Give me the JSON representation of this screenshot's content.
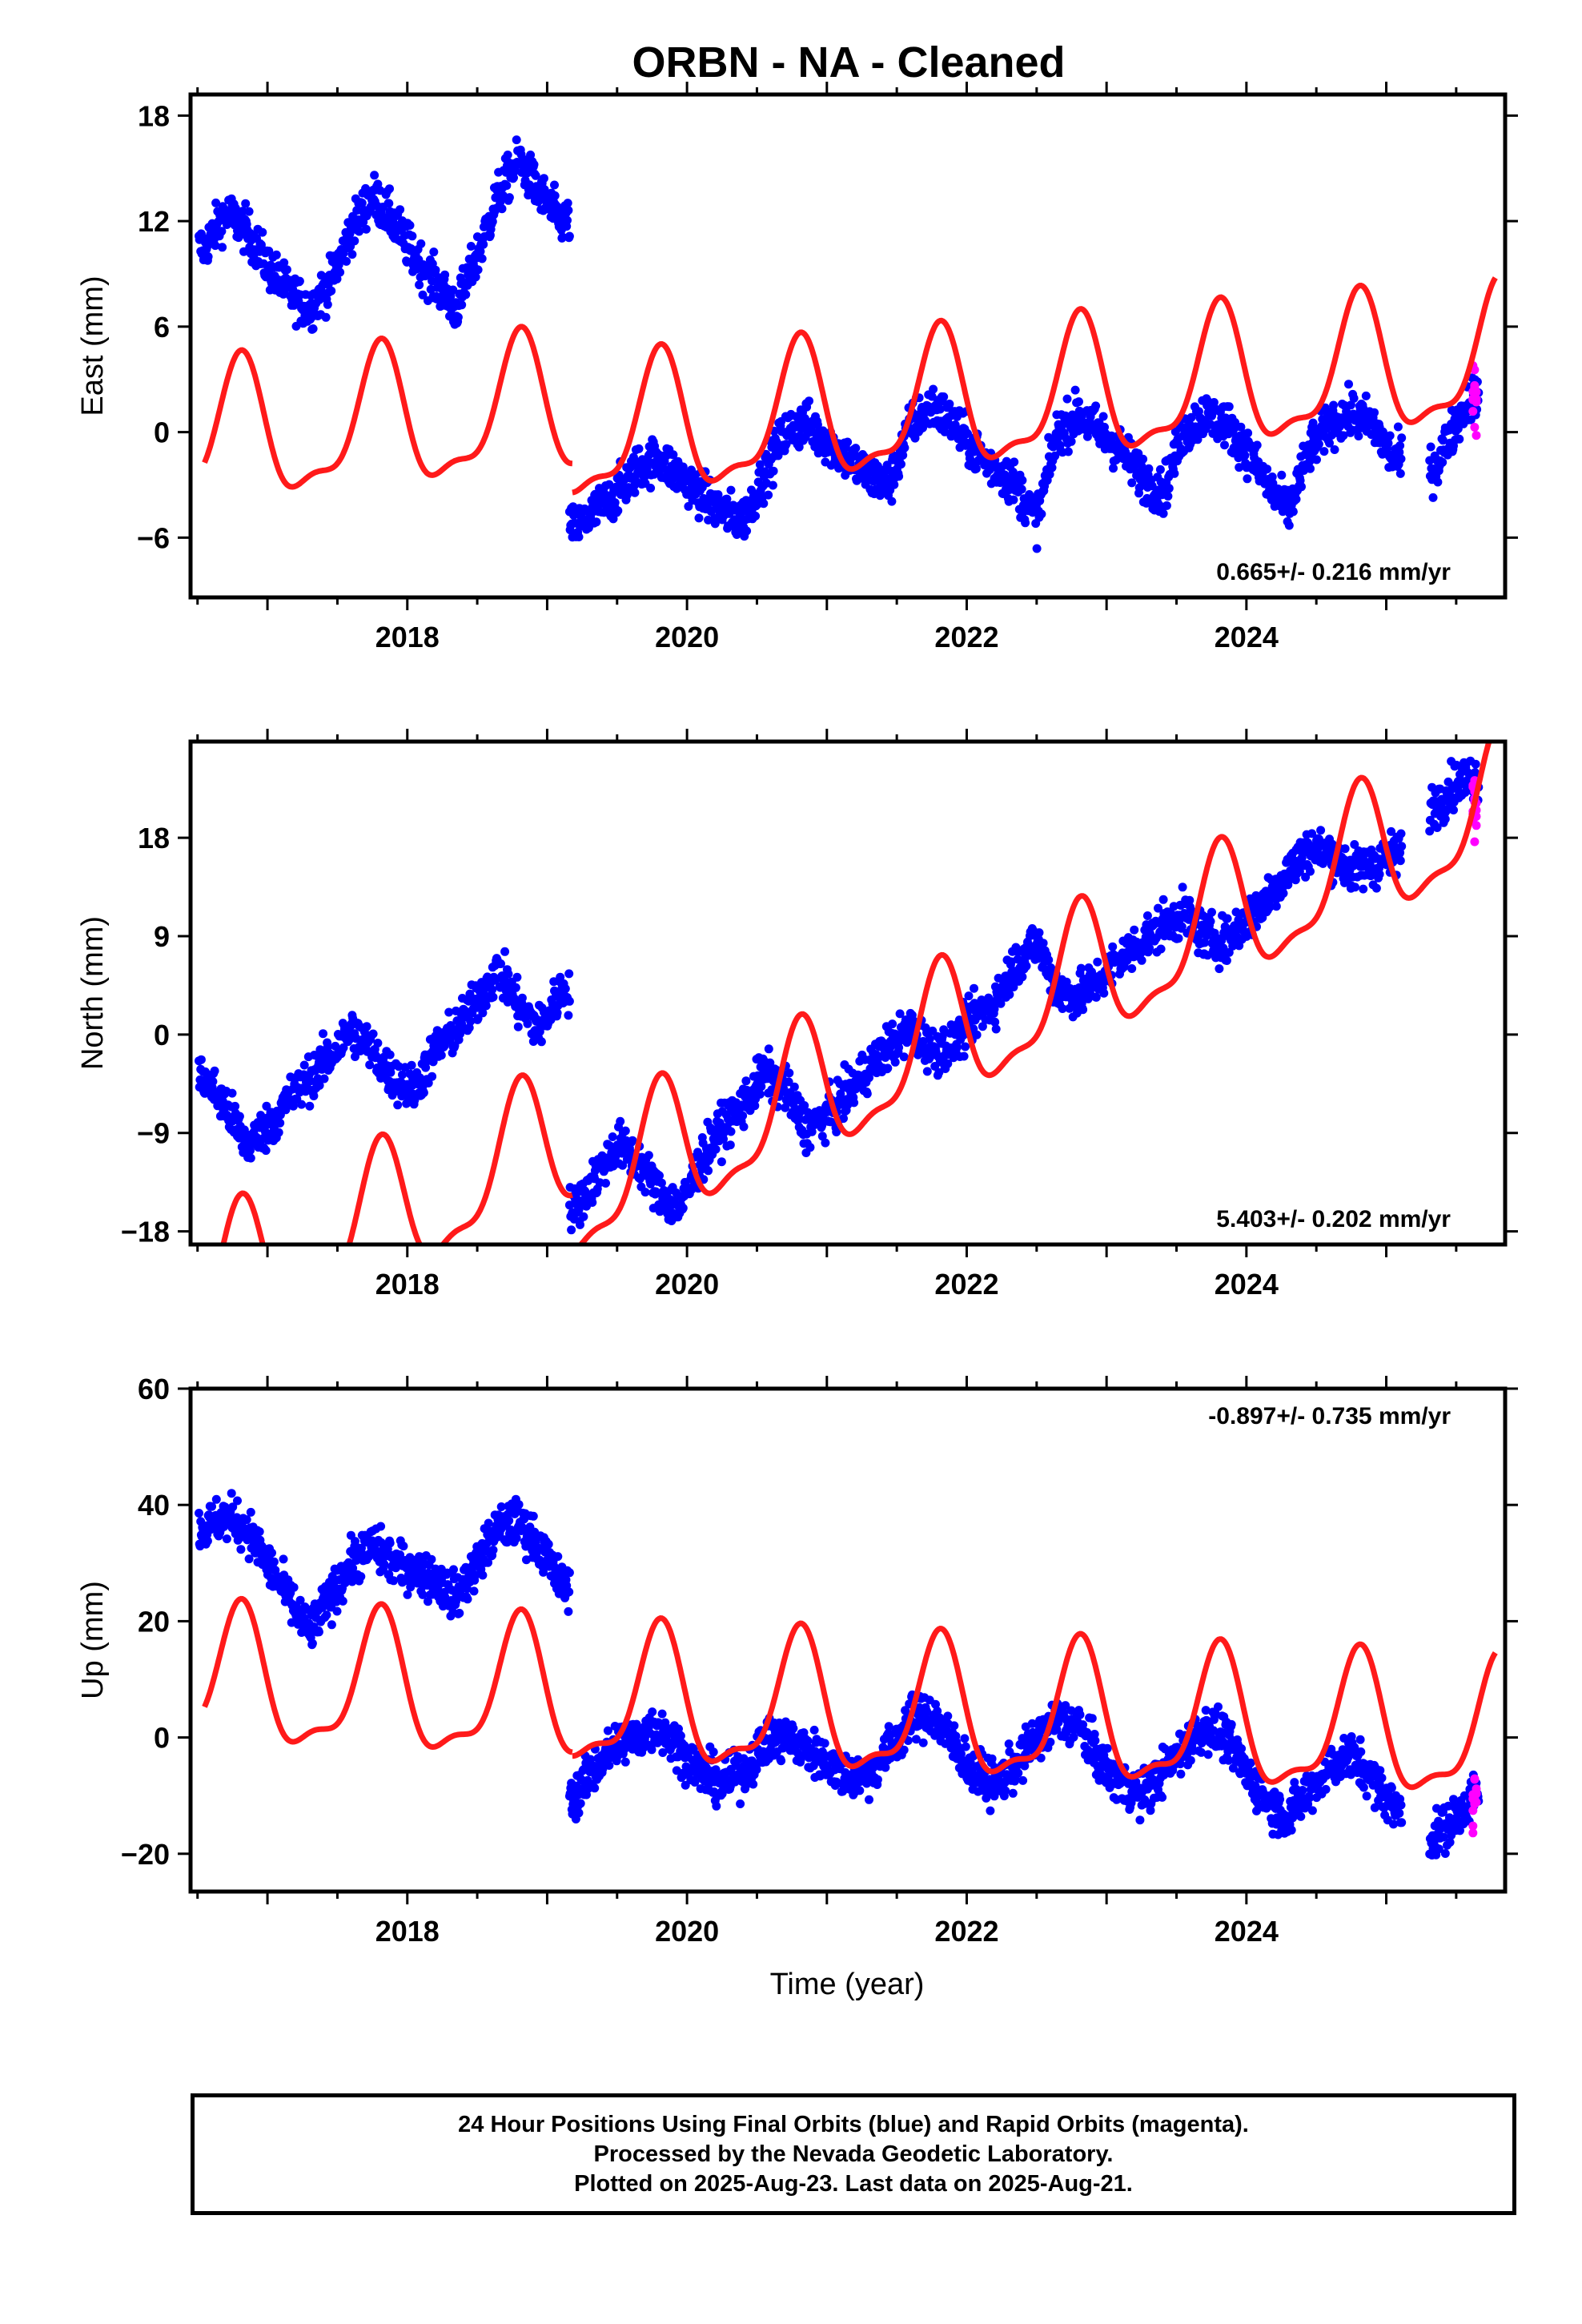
{
  "title": "ORBN  - NA - Cleaned",
  "xlabel": "Time (year)",
  "caption": {
    "line1": "24 Hour Positions Using Final Orbits (blue) and Rapid Orbits (magenta).",
    "line2": "Processed by the Nevada Geodetic Laboratory.",
    "line3": "Plotted on 2025-Aug-23. Last data on 2025-Aug-21."
  },
  "colors": {
    "final": "#0000ff",
    "rapid": "#ff00ff",
    "model": "#ff1a1a",
    "frame": "#000000"
  },
  "chart_data": [
    {
      "type": "scatter",
      "component": "east",
      "ylabel": "East (mm)",
      "rate_label": "0.665+/- 0.216 mm/yr",
      "xlim": [
        2016.45,
        2025.85
      ],
      "ylim": [
        -9.4,
        19.2
      ],
      "xticks": [
        2018,
        2020,
        2022,
        2024
      ],
      "yticks": [
        -6,
        0,
        6,
        12,
        18
      ],
      "series": [
        {
          "values_by_segment": [
            {
              "x": [
                2016.55,
                2016.7,
                2016.85,
                2017.0,
                2017.15,
                2017.3,
                2017.45,
                2017.6,
                2017.75,
                2017.9,
                2018.05,
                2018.2,
                2018.35,
                2018.5,
                2018.65,
                2018.8,
                2018.95,
                2019.1
              ],
              "y": [
                10.5,
                12.5,
                11.5,
                9.5,
                8.0,
                7.0,
                8.5,
                11.5,
                13.5,
                12.0,
                10.0,
                8.5,
                7.0,
                10.0,
                13.5,
                15.5,
                13.5,
                12.0
              ]
            },
            {
              "x": [
                2019.2,
                2019.35,
                2019.5,
                2019.65,
                2019.8,
                2019.95,
                2020.1,
                2020.25,
                2020.4,
                2020.55,
                2020.7,
                2020.85,
                2021.0,
                2021.15,
                2021.3,
                2021.45,
                2021.6,
                2021.75,
                2021.9,
                2022.05,
                2022.2,
                2022.35,
                2022.5,
                2022.65,
                2022.8,
                2022.95,
                2023.1,
                2023.25,
                2023.4,
                2023.55,
                2023.7,
                2023.85,
                2024.0,
                2024.15,
                2024.3,
                2024.45,
                2024.6,
                2024.75,
                2024.9,
                2025.05
              ],
              "y": [
                -5.5,
                -4.5,
                -3.5,
                -2.0,
                -1.5,
                -2.5,
                -3.5,
                -4.5,
                -5.0,
                -2.5,
                0.0,
                0.5,
                -0.5,
                -1.5,
                -2.5,
                -3.0,
                0.5,
                1.5,
                0.5,
                -1.0,
                -2.0,
                -3.0,
                -5.0,
                0.0,
                1.0,
                0.0,
                -1.0,
                -2.5,
                -3.5,
                0.0,
                1.0,
                0.5,
                -1.0,
                -3.0,
                -4.5,
                -1.0,
                0.5,
                1.0,
                0.5,
                -1.5
              ]
            },
            {
              "x": [
                2025.35,
                2025.5,
                2025.6
              ],
              "y": [
                -2.0,
                0.5,
                2.0
              ]
            }
          ]
        },
        {
          "name": "rapid",
          "x": [
            2025.62
          ],
          "y": [
            2.0
          ]
        }
      ],
      "model": {
        "segments": [
          [
            2016.55,
            2019.18
          ],
          [
            2019.18,
            2025.78
          ]
        ],
        "base": [
          -0.5,
          -0.4
        ],
        "jump_at": 2019.18,
        "rate": 0.665
      }
    },
    {
      "type": "scatter",
      "component": "north",
      "ylabel": "North (mm)",
      "rate_label": "5.403+/- 0.202 mm/yr",
      "xlim": [
        2016.45,
        2025.85
      ],
      "ylim": [
        -19.2,
        26.8
      ],
      "xticks": [
        2018,
        2020,
        2022,
        2024
      ],
      "yticks": [
        -18,
        -9,
        0,
        9,
        18
      ],
      "series": [
        {
          "values_by_segment": [
            {
              "x": [
                2016.55,
                2016.7,
                2016.85,
                2017.0,
                2017.15,
                2017.3,
                2017.45,
                2017.6,
                2017.75,
                2017.9,
                2018.05,
                2018.2,
                2018.35,
                2018.5,
                2018.65,
                2018.8,
                2018.95,
                2019.1
              ],
              "y": [
                -4.0,
                -6.5,
                -10.0,
                -8.5,
                -6.0,
                -4.0,
                -2.0,
                0.5,
                -1.5,
                -4.0,
                -5.0,
                -1.5,
                0.5,
                3.0,
                6.0,
                2.5,
                0.5,
                4.0
              ]
            },
            {
              "x": [
                2019.2,
                2019.35,
                2019.5,
                2019.65,
                2019.8,
                2019.95,
                2020.1,
                2020.25,
                2020.4,
                2020.55,
                2020.7,
                2020.85,
                2021.0,
                2021.15,
                2021.3,
                2021.45,
                2021.6,
                2021.75,
                2021.9,
                2022.05,
                2022.2,
                2022.35,
                2022.5,
                2022.65,
                2022.8,
                2022.95,
                2023.1,
                2023.25,
                2023.4,
                2023.55,
                2023.7,
                2023.85,
                2024.0,
                2024.15,
                2024.3,
                2024.45,
                2024.6,
                2024.75,
                2024.9,
                2025.05
              ],
              "y": [
                -16.0,
                -13.0,
                -10.0,
                -11.5,
                -14.5,
                -16.0,
                -11.5,
                -8.5,
                -6.5,
                -3.5,
                -5.0,
                -8.5,
                -7.5,
                -5.5,
                -3.0,
                -1.0,
                0.5,
                -1.5,
                -1.0,
                1.5,
                3.0,
                6.5,
                8.5,
                4.0,
                3.5,
                5.0,
                7.0,
                8.5,
                10.0,
                11.0,
                9.0,
                8.5,
                10.5,
                12.5,
                15.0,
                17.0,
                16.5,
                15.0,
                15.5,
                16.5
              ]
            },
            {
              "x": [
                2025.35,
                2025.5,
                2025.6
              ],
              "y": [
                21.0,
                23.0,
                23.5
              ]
            }
          ]
        },
        {
          "name": "rapid",
          "x": [
            2025.62
          ],
          "y": [
            21.5
          ]
        }
      ],
      "model": {
        "segments": [
          [
            2016.55,
            2019.18
          ],
          [
            2019.18,
            2025.78
          ]
        ],
        "base": [
          -24.0,
          -15.0
        ],
        "jump_at": 2019.18,
        "rate": 5.403
      }
    },
    {
      "type": "scatter",
      "component": "up",
      "ylabel": "Up (mm)",
      "rate_label": "-0.897+/- 0.735 mm/yr",
      "xlim": [
        2016.45,
        2025.85
      ],
      "ylim": [
        -26.5,
        60.0
      ],
      "xticks": [
        2018,
        2020,
        2022,
        2024
      ],
      "yticks": [
        -20,
        0,
        20,
        40,
        60
      ],
      "series": [
        {
          "values_by_segment": [
            {
              "x": [
                2016.55,
                2016.7,
                2016.85,
                2017.0,
                2017.15,
                2017.3,
                2017.45,
                2017.6,
                2017.75,
                2017.9,
                2018.05,
                2018.2,
                2018.35,
                2018.5,
                2018.65,
                2018.8,
                2018.95,
                2019.1
              ],
              "y": [
                36.0,
                38.0,
                36.0,
                30.0,
                24.0,
                18.0,
                24.0,
                30.0,
                33.0,
                30.0,
                29.0,
                27.0,
                24.0,
                30.0,
                36.0,
                37.0,
                33.0,
                26.0
              ]
            },
            {
              "x": [
                2019.2,
                2019.35,
                2019.5,
                2019.65,
                2019.8,
                2019.95,
                2020.1,
                2020.25,
                2020.4,
                2020.55,
                2020.7,
                2020.85,
                2021.0,
                2021.15,
                2021.3,
                2021.45,
                2021.6,
                2021.75,
                2021.9,
                2022.05,
                2022.2,
                2022.35,
                2022.5,
                2022.65,
                2022.8,
                2022.95,
                2023.1,
                2023.25,
                2023.4,
                2023.55,
                2023.7,
                2023.85,
                2024.0,
                2024.15,
                2024.3,
                2024.45,
                2024.6,
                2024.75,
                2024.9,
                2025.05
              ],
              "y": [
                -10.0,
                -5.0,
                -1.0,
                0.0,
                2.0,
                -2.0,
                -6.0,
                -8.0,
                -6.0,
                -1.0,
                0.0,
                -2.0,
                -4.0,
                -7.0,
                -6.0,
                -2.0,
                3.0,
                4.0,
                -1.0,
                -6.0,
                -8.0,
                -5.0,
                0.0,
                3.0,
                2.0,
                -4.0,
                -8.0,
                -10.0,
                -6.0,
                -2.0,
                2.0,
                0.0,
                -6.0,
                -11.0,
                -14.0,
                -9.0,
                -5.0,
                -3.0,
                -7.0,
                -12.0
              ]
            },
            {
              "x": [
                2025.35,
                2025.5,
                2025.6
              ],
              "y": [
                -17.0,
                -14.0,
                -10.0
              ]
            }
          ]
        },
        {
          "name": "rapid",
          "x": [
            2025.62
          ],
          "y": [
            -12.0
          ]
        }
      ],
      "model": {
        "segments": [
          [
            2016.55,
            2019.18
          ],
          [
            2019.18,
            2025.78
          ]
        ],
        "base": [
          9.0,
          6.0
        ],
        "jump_at": 2019.18,
        "rate": -0.897
      }
    }
  ]
}
